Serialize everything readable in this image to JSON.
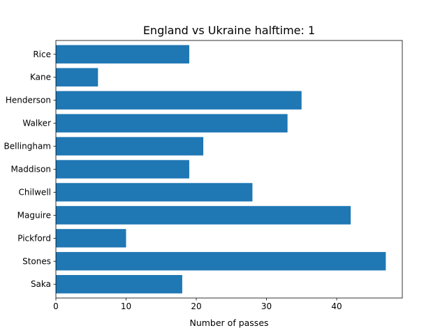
{
  "chart_data": {
    "type": "bar",
    "orientation": "horizontal",
    "title": "England vs Ukraine halftime: 1",
    "xlabel": "Number of passes",
    "ylabel": "",
    "categories": [
      "Saka",
      "Stones",
      "Pickford",
      "Maguire",
      "Chilwell",
      "Maddison",
      "Bellingham",
      "Walker",
      "Henderson",
      "Kane",
      "Rice"
    ],
    "values": [
      18,
      47,
      10,
      42,
      28,
      19,
      21,
      33,
      35,
      6,
      19
    ],
    "xlim": [
      0,
      49.35
    ],
    "xticks": [
      0,
      10,
      20,
      30,
      40
    ],
    "grid": false,
    "bar_color": "#1f77b4"
  }
}
